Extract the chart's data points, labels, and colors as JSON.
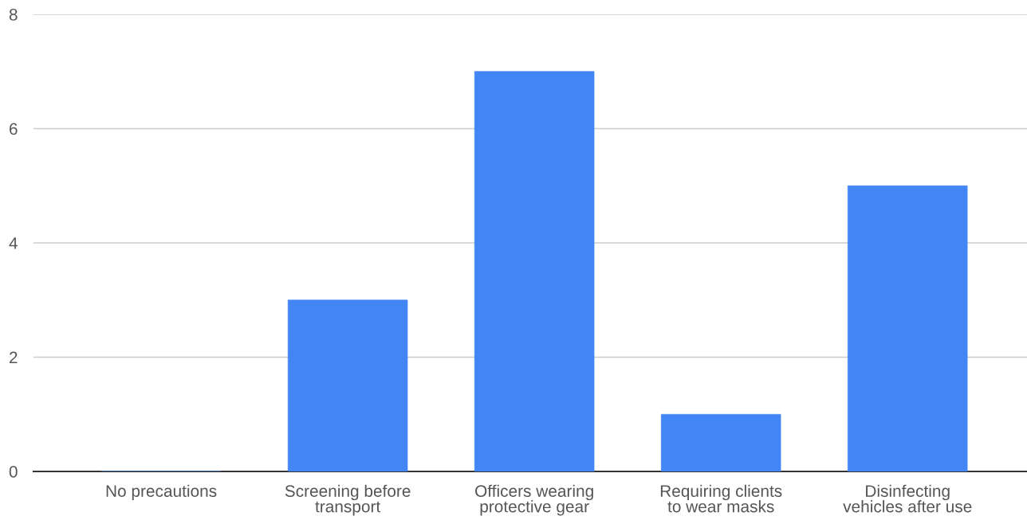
{
  "chart_data": {
    "type": "bar",
    "categories": [
      "No precautions",
      "Screening before\ntransport",
      "Officers wearing\nprotective gear",
      "Requiring clients\nto wear masks",
      "Disinfecting\nvehicles after use"
    ],
    "values": [
      0,
      3,
      7,
      1,
      5
    ],
    "color": "#4285f4",
    "ylim": [
      0,
      8
    ],
    "yticks": [
      0,
      2,
      4,
      6,
      8
    ],
    "grid": "y"
  }
}
